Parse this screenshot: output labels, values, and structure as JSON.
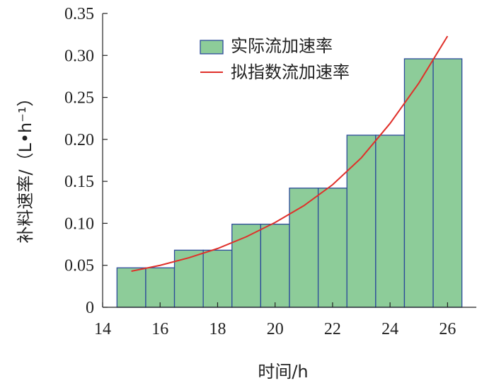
{
  "chart_data": {
    "type": "bar",
    "xlabel": "时间/h",
    "ylabel": "补料速率/（L•h⁻¹）",
    "xlim": [
      14,
      27
    ],
    "ylim": [
      0,
      0.35
    ],
    "x_ticks": [
      "14",
      "16",
      "18",
      "20",
      "22",
      "24",
      "26"
    ],
    "y_ticks": [
      "0",
      "0.05",
      "0.10",
      "0.15",
      "0.20",
      "0.25",
      "0.30",
      "0.35"
    ],
    "grid": false,
    "legend_position": "top-right",
    "series": [
      {
        "name": "实际流加速率",
        "kind": "bar",
        "color": "#8dcc99",
        "edge_color": "#2c4a9a",
        "bins": [
          {
            "x0": 14.5,
            "x1": 15.5,
            "value": 0.047
          },
          {
            "x0": 15.5,
            "x1": 16.5,
            "value": 0.047
          },
          {
            "x0": 16.5,
            "x1": 17.5,
            "value": 0.068
          },
          {
            "x0": 17.5,
            "x1": 18.5,
            "value": 0.068
          },
          {
            "x0": 18.5,
            "x1": 19.5,
            "value": 0.099
          },
          {
            "x0": 19.5,
            "x1": 20.5,
            "value": 0.099
          },
          {
            "x0": 20.5,
            "x1": 21.5,
            "value": 0.142
          },
          {
            "x0": 21.5,
            "x1": 22.5,
            "value": 0.142
          },
          {
            "x0": 22.5,
            "x1": 23.5,
            "value": 0.205
          },
          {
            "x0": 23.5,
            "x1": 24.5,
            "value": 0.205
          },
          {
            "x0": 24.5,
            "x1": 25.5,
            "value": 0.296
          },
          {
            "x0": 25.5,
            "x1": 26.5,
            "value": 0.296
          }
        ]
      },
      {
        "name": "拟指数流加速率",
        "kind": "line",
        "color": "#e0302a",
        "x": [
          15,
          16,
          17,
          18,
          19,
          20,
          21,
          22,
          23,
          24,
          25,
          26
        ],
        "y": [
          0.043,
          0.05,
          0.059,
          0.07,
          0.084,
          0.101,
          0.121,
          0.146,
          0.178,
          0.219,
          0.267,
          0.323
        ]
      }
    ]
  }
}
